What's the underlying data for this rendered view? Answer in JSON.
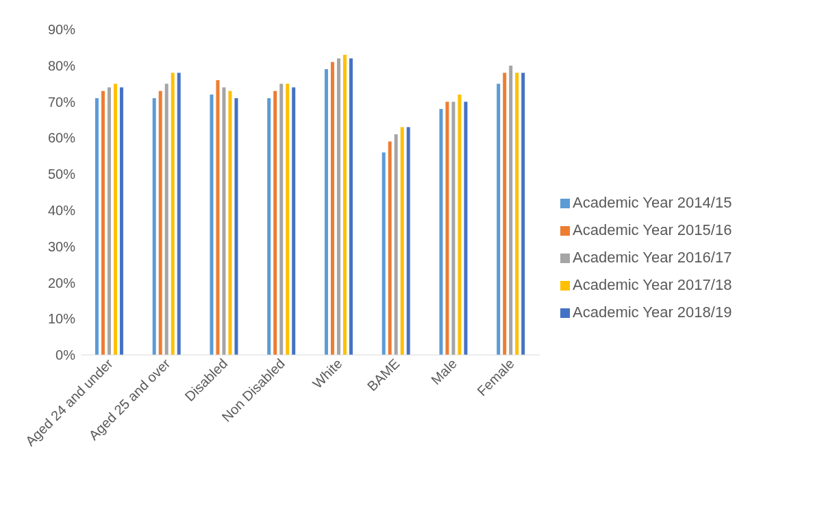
{
  "chart_data": {
    "type": "bar",
    "categories": [
      "Aged 24 and under",
      "Aged 25 and over",
      "Disabled",
      "Non Disabled",
      "White",
      "BAME",
      "Male",
      "Female"
    ],
    "series": [
      {
        "name": "Academic Year 2014/15",
        "color": "#5b9bd5",
        "values": [
          71,
          71,
          72,
          71,
          79,
          56,
          68,
          75
        ]
      },
      {
        "name": "Academic Year 2015/16",
        "color": "#ed7d31",
        "values": [
          73,
          73,
          76,
          73,
          81,
          59,
          70,
          78
        ]
      },
      {
        "name": "Academic Year 2016/17",
        "color": "#a5a5a5",
        "values": [
          74,
          75,
          74,
          75,
          82,
          61,
          70,
          80
        ]
      },
      {
        "name": "Academic Year 2017/18",
        "color": "#ffc000",
        "values": [
          75,
          78,
          73,
          75,
          83,
          63,
          72,
          78
        ]
      },
      {
        "name": "Academic Year 2018/19",
        "color": "#4472c4",
        "values": [
          74,
          78,
          71,
          74,
          82,
          63,
          70,
          78
        ]
      }
    ],
    "ylim": [
      0,
      90
    ],
    "yticks": [
      {
        "value": 0,
        "label": "0%"
      },
      {
        "value": 10,
        "label": "10%"
      },
      {
        "value": 20,
        "label": "20%"
      },
      {
        "value": 30,
        "label": "30%"
      },
      {
        "value": 40,
        "label": "40%"
      },
      {
        "value": 50,
        "label": "50%"
      },
      {
        "value": 60,
        "label": "60%"
      },
      {
        "value": 70,
        "label": "70%"
      },
      {
        "value": 80,
        "label": "80%"
      },
      {
        "value": 90,
        "label": "90%"
      }
    ],
    "grid": false,
    "legend": "right"
  }
}
